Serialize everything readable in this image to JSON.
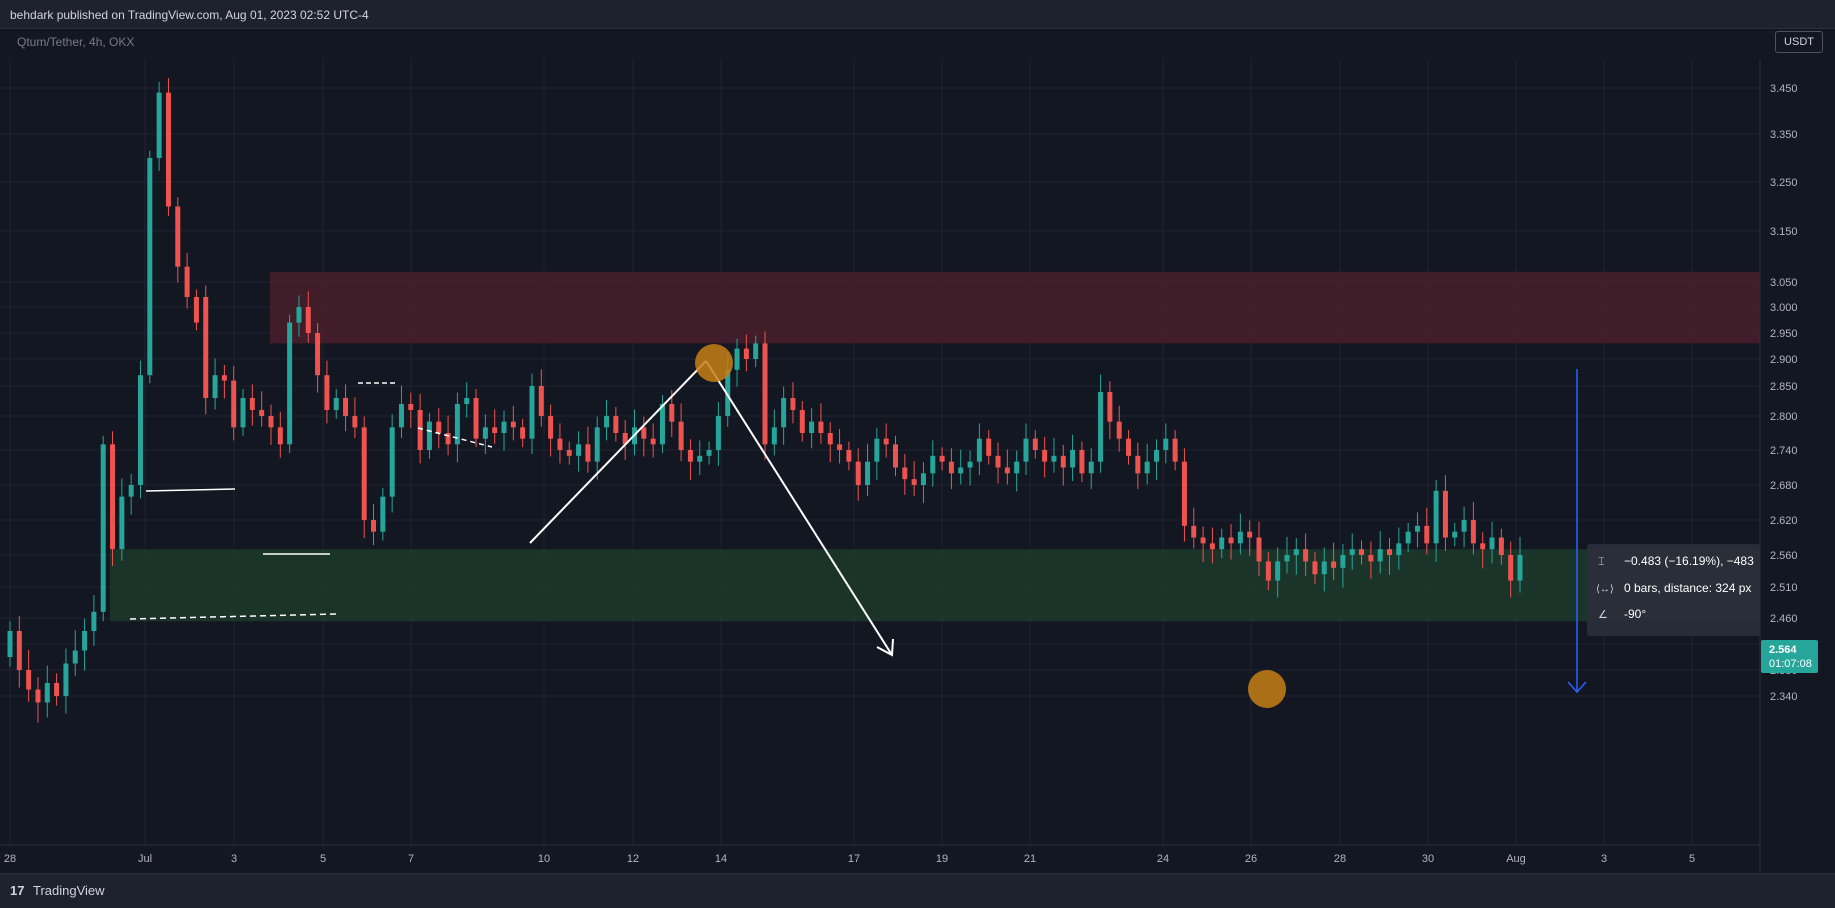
{
  "header": {
    "publisher": "behdark published on TradingView.com, Aug 01, 2023 02:52 UTC-4"
  },
  "symbol_line": "Qtum/Tether, 4h, OKX",
  "currency_button": "USDT",
  "footer": {
    "brand": "TradingView",
    "logo_glyph": "17"
  },
  "colors": {
    "up": "#26a69a",
    "down": "#ef5350",
    "bg": "#131722",
    "grid": "#1f2330",
    "supply_zone": "#4a1f2a",
    "demand_zone": "#1d3a2c",
    "measure": "#2962ff",
    "marker": "#c77f15"
  },
  "chart_data": {
    "type": "candlestick",
    "x_tick_labels": [
      "28",
      "Jul",
      "3",
      "5",
      "7",
      "10",
      "12",
      "14",
      "17",
      "19",
      "21",
      "24",
      "26",
      "28",
      "30",
      "Aug",
      "3",
      "5"
    ],
    "y_tick_labels": [
      "3.450",
      "3.350",
      "3.250",
      "3.150",
      "3.050",
      "3.000",
      "2.950",
      "2.900",
      "2.850",
      "2.800",
      "2.740",
      "2.680",
      "2.620",
      "2.560",
      "2.510",
      "2.460",
      "2.420",
      "2.380",
      "2.340"
    ],
    "last_price": "2.564",
    "countdown": "01:07:08",
    "zones": [
      {
        "name": "supply",
        "from": 2.93,
        "to": 3.07
      },
      {
        "name": "demand",
        "from": 2.455,
        "to": 2.57
      }
    ],
    "measure_tooltip": {
      "change": "−0.483 (−16.19%), −483",
      "bars": "0 bars, distance: 324 px",
      "angle": "-90°"
    },
    "candles_note_open_close": [
      [
        2.4,
        2.44
      ],
      [
        2.44,
        2.38
      ],
      [
        2.38,
        2.35
      ],
      [
        2.35,
        2.33
      ],
      [
        2.33,
        2.36
      ],
      [
        2.36,
        2.34
      ],
      [
        2.34,
        2.39
      ],
      [
        2.39,
        2.41
      ],
      [
        2.41,
        2.44
      ],
      [
        2.44,
        2.47
      ],
      [
        2.47,
        2.75
      ],
      [
        2.75,
        2.57
      ],
      [
        2.57,
        2.66
      ],
      [
        2.66,
        2.68
      ],
      [
        2.68,
        2.87
      ],
      [
        2.87,
        3.3
      ],
      [
        3.3,
        3.44
      ],
      [
        3.44,
        3.2
      ],
      [
        3.2,
        3.08
      ],
      [
        3.08,
        3.02
      ],
      [
        3.02,
        2.97
      ],
      [
        3.02,
        2.83
      ],
      [
        2.83,
        2.87
      ],
      [
        2.87,
        2.86
      ],
      [
        2.86,
        2.78
      ],
      [
        2.78,
        2.83
      ],
      [
        2.83,
        2.81
      ],
      [
        2.81,
        2.8
      ],
      [
        2.8,
        2.78
      ],
      [
        2.78,
        2.75
      ],
      [
        2.75,
        2.97
      ],
      [
        2.97,
        3.0
      ],
      [
        3.0,
        2.95
      ],
      [
        2.95,
        2.87
      ],
      [
        2.87,
        2.81
      ],
      [
        2.81,
        2.83
      ],
      [
        2.83,
        2.8
      ],
      [
        2.8,
        2.78
      ],
      [
        2.78,
        2.62
      ],
      [
        2.62,
        2.6
      ],
      [
        2.6,
        2.66
      ],
      [
        2.66,
        2.78
      ],
      [
        2.78,
        2.82
      ],
      [
        2.82,
        2.81
      ],
      [
        2.81,
        2.74
      ],
      [
        2.74,
        2.79
      ],
      [
        2.79,
        2.77
      ],
      [
        2.77,
        2.75
      ],
      [
        2.75,
        2.82
      ],
      [
        2.82,
        2.83
      ],
      [
        2.83,
        2.76
      ],
      [
        2.76,
        2.78
      ],
      [
        2.78,
        2.77
      ],
      [
        2.77,
        2.79
      ],
      [
        2.79,
        2.78
      ],
      [
        2.78,
        2.76
      ],
      [
        2.76,
        2.85
      ],
      [
        2.85,
        2.8
      ],
      [
        2.8,
        2.76
      ],
      [
        2.76,
        2.74
      ],
      [
        2.74,
        2.73
      ],
      [
        2.73,
        2.75
      ],
      [
        2.75,
        2.72
      ],
      [
        2.72,
        2.78
      ],
      [
        2.78,
        2.8
      ],
      [
        2.8,
        2.77
      ],
      [
        2.77,
        2.75
      ],
      [
        2.75,
        2.78
      ],
      [
        2.78,
        2.76
      ],
      [
        2.76,
        2.75
      ],
      [
        2.75,
        2.82
      ],
      [
        2.82,
        2.79
      ],
      [
        2.79,
        2.74
      ],
      [
        2.74,
        2.72
      ],
      [
        2.72,
        2.73
      ],
      [
        2.73,
        2.74
      ],
      [
        2.74,
        2.8
      ],
      [
        2.8,
        2.88
      ],
      [
        2.88,
        2.92
      ],
      [
        2.92,
        2.9
      ],
      [
        2.9,
        2.93
      ],
      [
        2.93,
        2.75
      ],
      [
        2.75,
        2.78
      ],
      [
        2.78,
        2.83
      ],
      [
        2.83,
        2.81
      ],
      [
        2.81,
        2.77
      ],
      [
        2.77,
        2.79
      ],
      [
        2.79,
        2.77
      ],
      [
        2.77,
        2.75
      ],
      [
        2.75,
        2.74
      ],
      [
        2.74,
        2.72
      ],
      [
        2.72,
        2.68
      ],
      [
        2.68,
        2.72
      ],
      [
        2.72,
        2.76
      ],
      [
        2.76,
        2.75
      ],
      [
        2.75,
        2.71
      ],
      [
        2.71,
        2.69
      ],
      [
        2.69,
        2.68
      ],
      [
        2.68,
        2.7
      ],
      [
        2.7,
        2.73
      ],
      [
        2.73,
        2.72
      ],
      [
        2.72,
        2.7
      ],
      [
        2.7,
        2.71
      ],
      [
        2.71,
        2.72
      ],
      [
        2.72,
        2.76
      ],
      [
        2.76,
        2.73
      ],
      [
        2.73,
        2.71
      ],
      [
        2.71,
        2.7
      ],
      [
        2.7,
        2.72
      ],
      [
        2.72,
        2.76
      ],
      [
        2.76,
        2.74
      ],
      [
        2.74,
        2.72
      ],
      [
        2.72,
        2.73
      ],
      [
        2.73,
        2.71
      ],
      [
        2.71,
        2.74
      ],
      [
        2.74,
        2.7
      ],
      [
        2.7,
        2.72
      ],
      [
        2.72,
        2.84
      ],
      [
        2.84,
        2.79
      ],
      [
        2.79,
        2.76
      ],
      [
        2.76,
        2.73
      ],
      [
        2.73,
        2.7
      ],
      [
        2.7,
        2.72
      ],
      [
        2.72,
        2.74
      ],
      [
        2.74,
        2.76
      ],
      [
        2.76,
        2.72
      ],
      [
        2.72,
        2.61
      ],
      [
        2.61,
        2.59
      ],
      [
        2.59,
        2.58
      ],
      [
        2.58,
        2.57
      ],
      [
        2.57,
        2.59
      ],
      [
        2.59,
        2.58
      ],
      [
        2.58,
        2.6
      ],
      [
        2.6,
        2.59
      ],
      [
        2.59,
        2.55
      ],
      [
        2.55,
        2.52
      ],
      [
        2.52,
        2.55
      ],
      [
        2.55,
        2.56
      ],
      [
        2.56,
        2.57
      ],
      [
        2.57,
        2.55
      ],
      [
        2.55,
        2.53
      ],
      [
        2.53,
        2.55
      ],
      [
        2.55,
        2.54
      ],
      [
        2.54,
        2.56
      ],
      [
        2.56,
        2.57
      ],
      [
        2.57,
        2.56
      ],
      [
        2.56,
        2.55
      ],
      [
        2.55,
        2.57
      ],
      [
        2.57,
        2.56
      ],
      [
        2.56,
        2.58
      ],
      [
        2.58,
        2.6
      ],
      [
        2.6,
        2.61
      ],
      [
        2.61,
        2.58
      ],
      [
        2.58,
        2.67
      ],
      [
        2.67,
        2.59
      ],
      [
        2.59,
        2.6
      ],
      [
        2.6,
        2.62
      ],
      [
        2.62,
        2.58
      ],
      [
        2.58,
        2.57
      ],
      [
        2.57,
        2.59
      ],
      [
        2.59,
        2.56
      ],
      [
        2.56,
        2.52
      ],
      [
        2.52,
        2.56
      ]
    ]
  }
}
